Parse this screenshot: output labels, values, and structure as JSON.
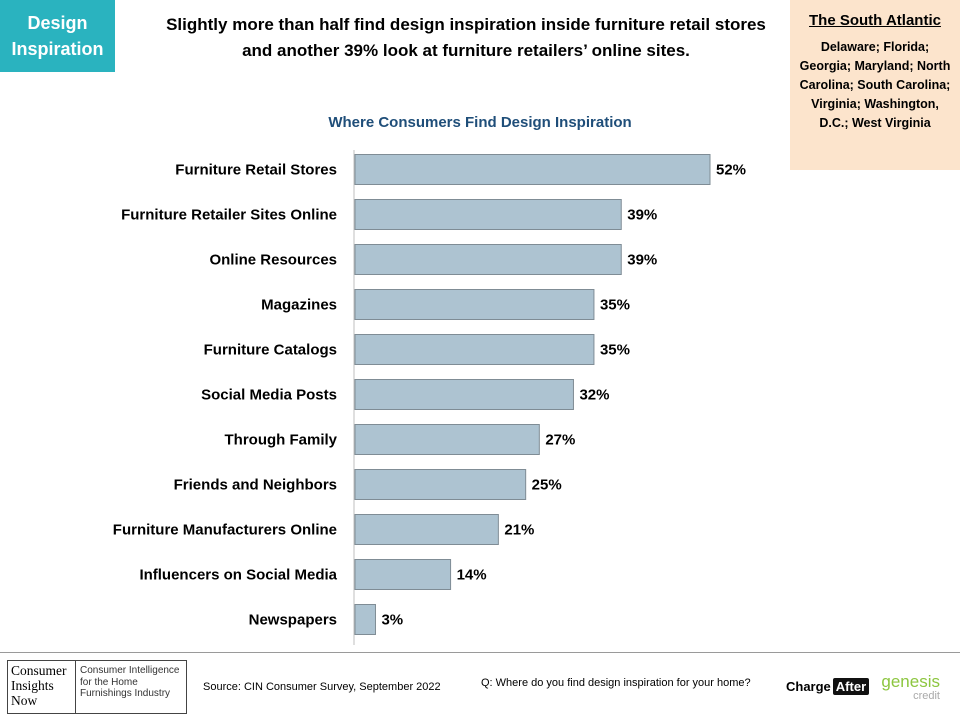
{
  "tag": {
    "line1": "Design",
    "line2": "Inspiration"
  },
  "headline": "Slightly more than half find design inspiration inside furniture retail stores and another 39% look at furniture retailers’ online sites.",
  "region": {
    "title": "The South Atlantic",
    "states": "Delaware; Florida; Georgia; Maryland; North Carolina; South Carolina; Virginia; Washington, D.C.; West Virginia"
  },
  "chart_data": {
    "type": "bar",
    "orientation": "horizontal",
    "title": "Where Consumers Find Design Inspiration",
    "categories": [
      "Furniture Retail Stores",
      "Furniture Retailer Sites Online",
      "Online Resources",
      "Magazines",
      "Furniture Catalogs",
      "Social Media Posts",
      "Through Family",
      "Friends and Neighbors",
      "Furniture Manufacturers Online",
      "Influencers on Social Media",
      "Newspapers"
    ],
    "values": [
      52,
      39,
      39,
      35,
      35,
      32,
      27,
      25,
      21,
      14,
      3
    ],
    "value_labels": [
      "52%",
      "39%",
      "39%",
      "35%",
      "35%",
      "32%",
      "27%",
      "25%",
      "21%",
      "14%",
      "3%"
    ],
    "bar_color": "#adc3d1",
    "bar_border": "#7f8c95",
    "xlim": [
      0,
      100
    ],
    "grid": false
  },
  "footer": {
    "logo_left": [
      "Consumer",
      "Insights",
      "Now"
    ],
    "logo_right": [
      "Consumer Intelligence",
      "for the Home",
      "Furnishings Industry"
    ],
    "source": "Source: CIN Consumer Survey, September  2022",
    "question": "Q: Where do you find design inspiration for your home?",
    "charge": "Charge",
    "after": "After",
    "genesis": "genesis",
    "credit": "credit"
  }
}
